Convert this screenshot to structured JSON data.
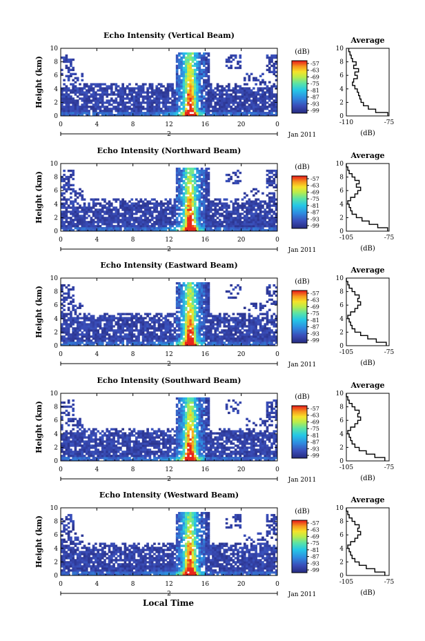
{
  "figure": {
    "x_axis_label": "Local Time",
    "date_label": "Jan 2011",
    "day_label": "2"
  },
  "chart_data": [
    {
      "type": "heatmap",
      "title": "Echo Intensity (Vertical Beam)",
      "ylabel": "Height (km)",
      "x_ticks": [
        "0",
        "4",
        "8",
        "12",
        "16",
        "20",
        "0"
      ],
      "y_ticks": [
        "0",
        "2",
        "4",
        "6",
        "8",
        "10"
      ],
      "xlim": [
        0,
        24
      ],
      "ylim": [
        0,
        10
      ],
      "colorbar": {
        "label": "(dB)",
        "ticks": [
          "-57",
          "-63",
          "-69",
          "-75",
          "-81",
          "-87",
          "-93",
          "-99"
        ]
      },
      "profile": {
        "title": "Average",
        "xlabel": "(dB)",
        "xlim": [
          -110,
          -75
        ],
        "x_ticks": [
          "-110",
          "-75"
        ],
        "y_ticks": [
          "0",
          "2",
          "4",
          "6",
          "8",
          "10"
        ],
        "heights": [
          0,
          0.5,
          1,
          1.5,
          2,
          2.5,
          3,
          3.5,
          4,
          4.5,
          5,
          5.5,
          6,
          6.5,
          7,
          7.5,
          8,
          8.5,
          9,
          9.5
        ],
        "values": [
          -76,
          -86,
          -92,
          -96,
          -98,
          -99,
          -100,
          -101,
          -103,
          -105,
          -104,
          -101,
          -103,
          -100,
          -104,
          -102,
          -105,
          -106,
          -107,
          -108
        ]
      }
    },
    {
      "type": "heatmap",
      "title": "Echo Intensity (Northward Beam)",
      "ylabel": "Height (km)",
      "x_ticks": [
        "0",
        "4",
        "8",
        "12",
        "16",
        "20",
        "0"
      ],
      "y_ticks": [
        "0",
        "2",
        "4",
        "6",
        "8",
        "10"
      ],
      "xlim": [
        0,
        24
      ],
      "ylim": [
        0,
        10
      ],
      "colorbar": {
        "label": "(dB)",
        "ticks": [
          "-57",
          "-63",
          "-69",
          "-75",
          "-81",
          "-87",
          "-93",
          "-99"
        ]
      },
      "profile": {
        "title": "Average",
        "xlabel": "(dB)",
        "xlim": [
          -105,
          -75
        ],
        "x_ticks": [
          "-105",
          "-75"
        ],
        "y_ticks": [
          "0",
          "2",
          "4",
          "6",
          "8",
          "10"
        ],
        "heights": [
          0,
          0.5,
          1,
          1.5,
          2,
          2.5,
          3,
          3.5,
          4,
          4.5,
          5,
          5.5,
          6,
          6.5,
          7,
          7.5,
          8,
          8.5,
          9,
          9.5
        ],
        "values": [
          -76,
          -83,
          -89,
          -94,
          -98,
          -101,
          -102,
          -103,
          -104,
          -102,
          -99,
          -97,
          -95,
          -98,
          -96,
          -99,
          -101,
          -103,
          -104,
          -105
        ]
      }
    },
    {
      "type": "heatmap",
      "title": "Echo Intensity (Eastward Beam)",
      "ylabel": "Height (km)",
      "x_ticks": [
        "0",
        "4",
        "8",
        "12",
        "16",
        "20",
        "0"
      ],
      "y_ticks": [
        "0",
        "2",
        "4",
        "6",
        "8",
        "10"
      ],
      "xlim": [
        0,
        24
      ],
      "ylim": [
        0,
        10
      ],
      "colorbar": {
        "label": "(dB)",
        "ticks": [
          "-57",
          "-63",
          "-69",
          "-75",
          "-81",
          "-87",
          "-93",
          "-99"
        ]
      },
      "profile": {
        "title": "Average",
        "xlabel": "(dB)",
        "xlim": [
          -105,
          -75
        ],
        "x_ticks": [
          "-105",
          "-75"
        ],
        "y_ticks": [
          "0",
          "2",
          "4",
          "6",
          "8",
          "10"
        ],
        "heights": [
          0,
          0.5,
          1,
          1.5,
          2,
          2.5,
          3,
          3.5,
          4,
          4.5,
          5,
          5.5,
          6,
          6.5,
          7,
          7.5,
          8,
          8.5,
          9,
          9.5
        ],
        "values": [
          -77,
          -84,
          -90,
          -95,
          -99,
          -101,
          -102,
          -103,
          -104,
          -102,
          -99,
          -97,
          -95,
          -97,
          -96,
          -99,
          -101,
          -103,
          -104,
          -105
        ]
      }
    },
    {
      "type": "heatmap",
      "title": "Echo Intensity (Southward Beam)",
      "ylabel": "Height (km)",
      "x_ticks": [
        "0",
        "4",
        "8",
        "12",
        "16",
        "20",
        "0"
      ],
      "y_ticks": [
        "0",
        "2",
        "4",
        "6",
        "8",
        "10"
      ],
      "xlim": [
        0,
        24
      ],
      "ylim": [
        0,
        10
      ],
      "colorbar": {
        "label": "(dB)",
        "ticks": [
          "-57",
          "-63",
          "-69",
          "-75",
          "-81",
          "-87",
          "-93",
          "-99"
        ]
      },
      "profile": {
        "title": "Average",
        "xlabel": "(dB)",
        "xlim": [
          -105,
          -75
        ],
        "x_ticks": [
          "-105",
          "-75"
        ],
        "y_ticks": [
          "0",
          "2",
          "4",
          "6",
          "8",
          "10"
        ],
        "heights": [
          0,
          0.5,
          1,
          1.5,
          2,
          2.5,
          3,
          3.5,
          4,
          4.5,
          5,
          5.5,
          6,
          6.5,
          7,
          7.5,
          8,
          8.5,
          9,
          9.5
        ],
        "values": [
          -78,
          -85,
          -91,
          -96,
          -99,
          -101,
          -102,
          -103,
          -104,
          -102,
          -99,
          -97,
          -95,
          -97,
          -96,
          -99,
          -101,
          -103,
          -104,
          -105
        ]
      }
    },
    {
      "type": "heatmap",
      "title": "Echo Intensity (Westward Beam)",
      "ylabel": "Height (km)",
      "x_ticks": [
        "0",
        "4",
        "8",
        "12",
        "16",
        "20",
        "0"
      ],
      "y_ticks": [
        "0",
        "2",
        "4",
        "6",
        "8",
        "10"
      ],
      "xlim": [
        0,
        24
      ],
      "ylim": [
        0,
        10
      ],
      "colorbar": {
        "label": "(dB)",
        "ticks": [
          "-57",
          "-63",
          "-69",
          "-75",
          "-81",
          "-87",
          "-93",
          "-99"
        ]
      },
      "profile": {
        "title": "Average",
        "xlabel": "(dB)",
        "xlim": [
          -105,
          -75
        ],
        "x_ticks": [
          "-105",
          "-75"
        ],
        "y_ticks": [
          "0",
          "2",
          "4",
          "6",
          "8",
          "10"
        ],
        "heights": [
          0,
          0.5,
          1,
          1.5,
          2,
          2.5,
          3,
          3.5,
          4,
          4.5,
          5,
          5.5,
          6,
          6.5,
          7,
          7.5,
          8,
          8.5,
          9,
          9.5
        ],
        "values": [
          -78,
          -85,
          -91,
          -96,
          -99,
          -101,
          -102,
          -103,
          -104,
          -102,
          -99,
          -97,
          -95,
          -97,
          -96,
          -99,
          -101,
          -103,
          -104,
          -105
        ]
      }
    }
  ]
}
